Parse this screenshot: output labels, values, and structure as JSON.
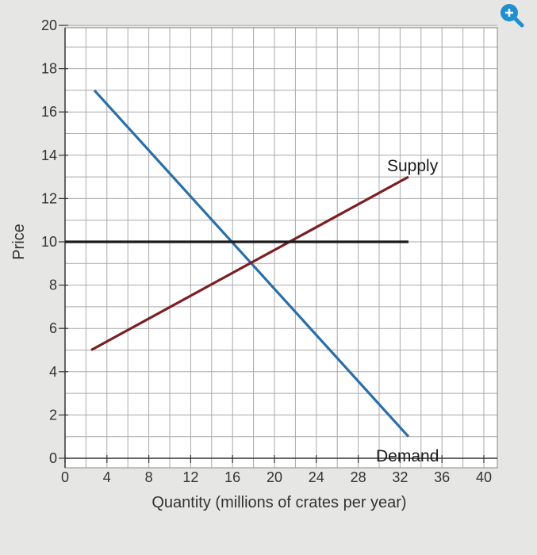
{
  "chart_data": {
    "type": "line",
    "title": "",
    "xlabel": "Quantity (millions of crates per year)",
    "ylabel": "Price",
    "xlim": [
      0,
      40
    ],
    "ylim": [
      0,
      20
    ],
    "x_ticks": [
      0,
      4,
      8,
      12,
      16,
      20,
      24,
      28,
      32,
      36,
      40
    ],
    "y_ticks": [
      0,
      2,
      4,
      6,
      8,
      10,
      12,
      14,
      16,
      18,
      20
    ],
    "grid": true,
    "series": [
      {
        "name": "Demand",
        "color": "#2b6fa8",
        "points": [
          [
            2.8,
            17
          ],
          [
            32.8,
            1
          ]
        ]
      },
      {
        "name": "Supply",
        "color": "#7a1f22",
        "points": [
          [
            2.5,
            5
          ],
          [
            32.8,
            13
          ]
        ]
      },
      {
        "name": "",
        "color": "#1a1a1a",
        "points": [
          [
            0,
            10
          ],
          [
            32.8,
            10
          ]
        ]
      }
    ]
  },
  "zoom_icon": {
    "name": "zoom-in-icon",
    "color": "#1f8fd0"
  }
}
